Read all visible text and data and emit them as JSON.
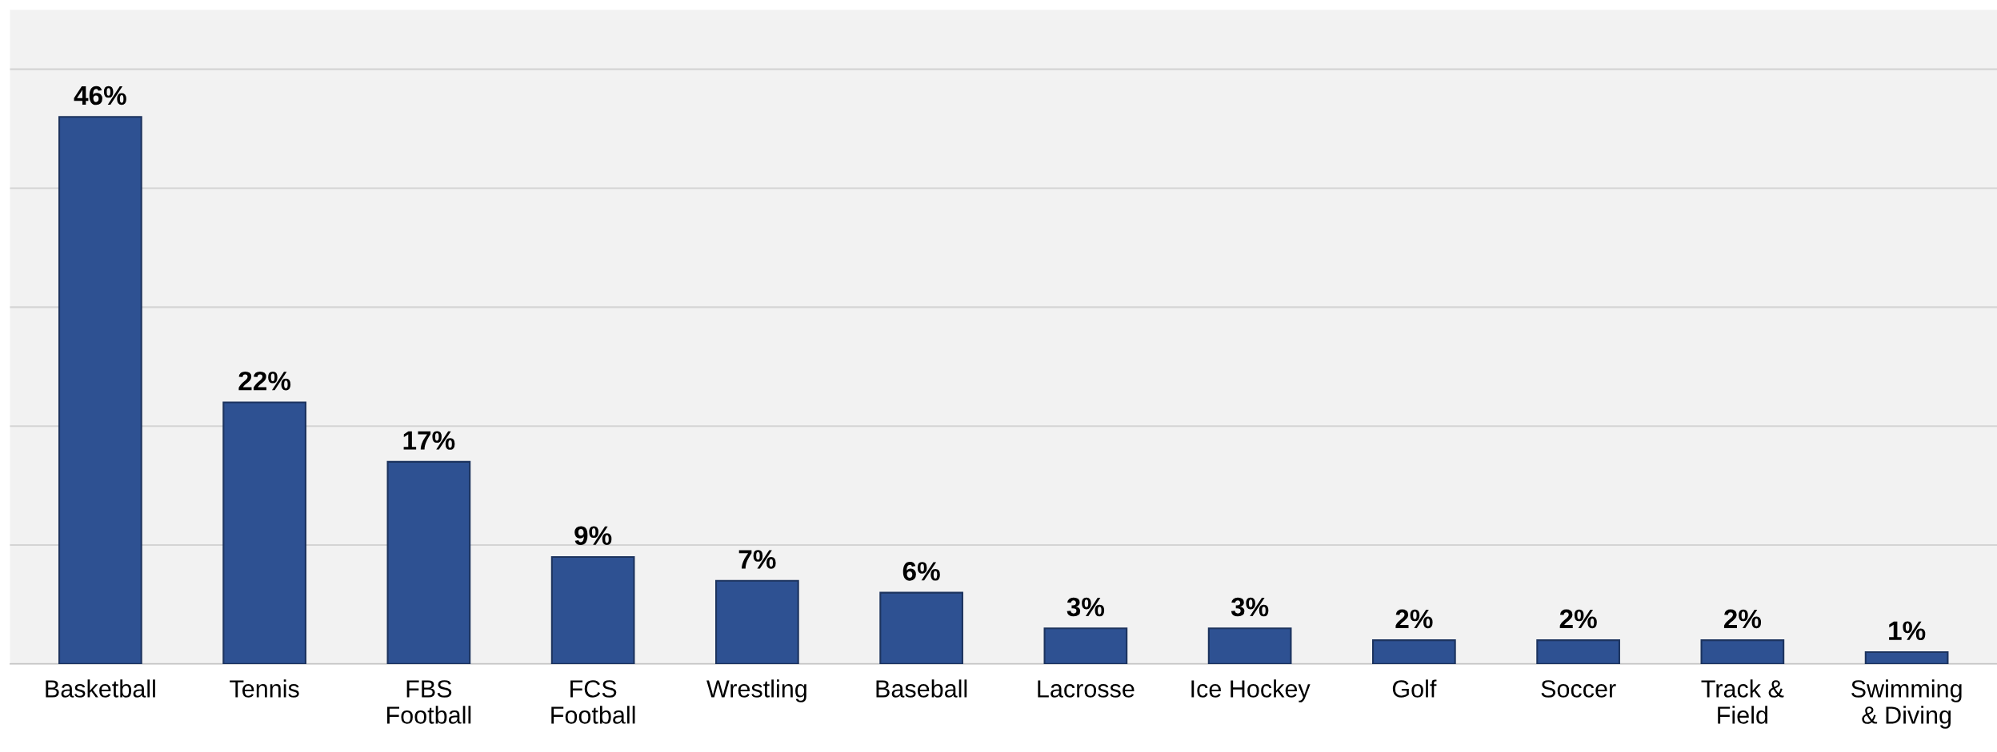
{
  "chart_data": {
    "type": "bar",
    "categories": [
      "Basketball",
      "Tennis",
      "FBS\nFootball",
      "FCS\nFootball",
      "Wrestling",
      "Baseball",
      "Lacrosse",
      "Ice Hockey",
      "Golf",
      "Soccer",
      "Track &\nField",
      "Swimming\n& Diving"
    ],
    "values": [
      46,
      22,
      17,
      9,
      7,
      6,
      3,
      3,
      2,
      2,
      2,
      1
    ],
    "value_labels": [
      "46%",
      "22%",
      "17%",
      "9%",
      "7%",
      "6%",
      "3%",
      "3%",
      "2%",
      "2%",
      "2%",
      "1%"
    ],
    "color": "#2e5192",
    "ylim": [
      0,
      55
    ],
    "yticks": [
      {
        "value": 0,
        "label": null
      },
      {
        "value": 10,
        "label": null
      },
      {
        "value": 20,
        "label": null
      },
      {
        "value": 30,
        "label": null
      },
      {
        "value": 40,
        "label": null
      },
      {
        "value": 50,
        "label": null
      }
    ],
    "grid": "y",
    "tick_labels": "x"
  }
}
